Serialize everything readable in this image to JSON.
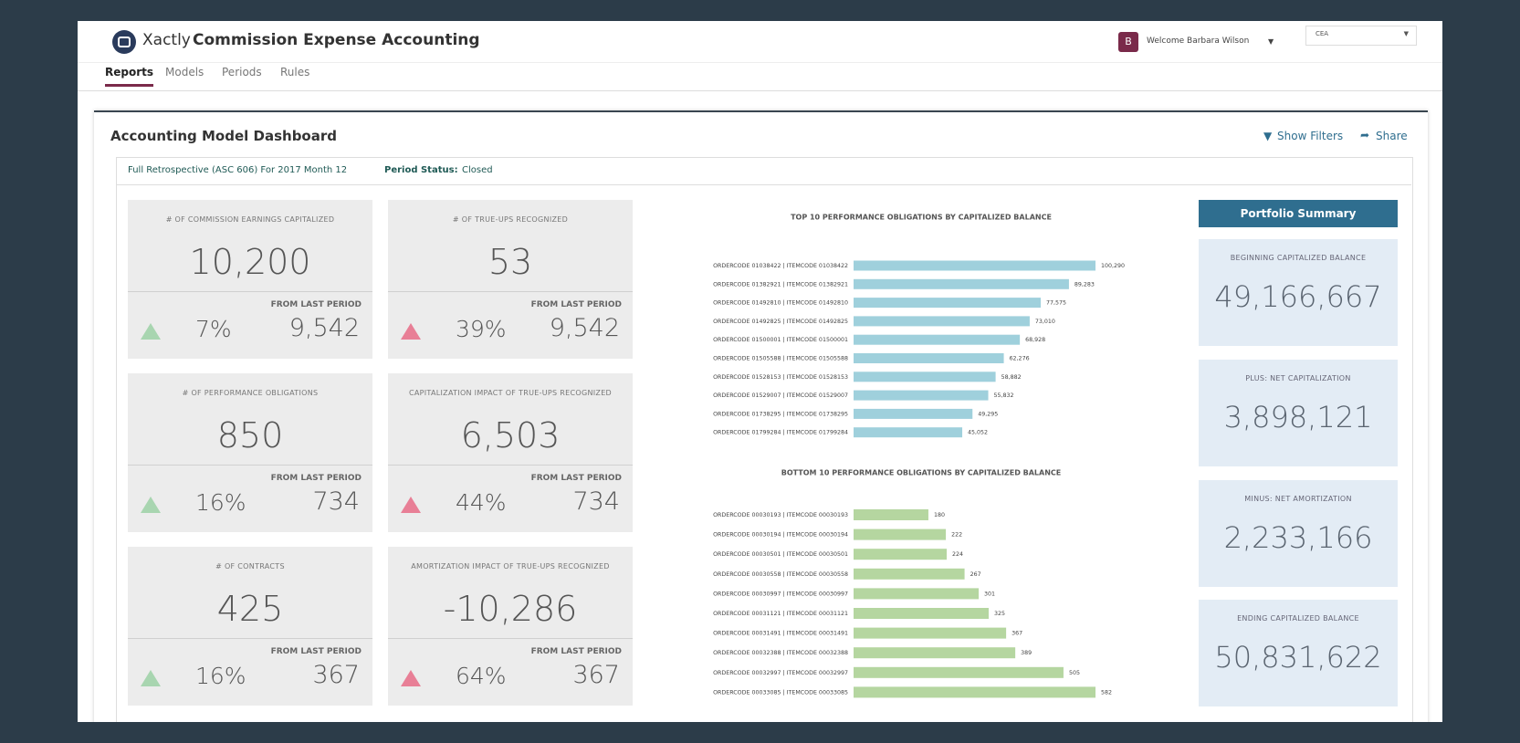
{
  "header": {
    "brand": "Xactly",
    "product": "Commission Expense Accounting",
    "avatar": "B",
    "welcome": "Welcome Barbara Wilson",
    "selector": "CEA"
  },
  "nav": {
    "tabs": [
      "Reports",
      "Models",
      "Periods",
      "Rules"
    ]
  },
  "dashboard": {
    "title": "Accounting Model Dashboard",
    "actions": [
      "Show Filters",
      "Share"
    ],
    "filter": "Full Retrospective (ASC 606) For 2017 Month 12",
    "status_label": "Period Status:",
    "status": "Closed"
  },
  "kpis": [
    {
      "title": "# OF COMMISSION EARNINGS CAPITALIZED",
      "value": "10,200",
      "change": "7%",
      "compare_label": "FROM LAST PERIOD",
      "previous": "9,542"
    },
    {
      "title": "# OF TRUE-UPS RECOGNIZED",
      "value": "53",
      "change": "39%",
      "compare_label": "FROM LAST PERIOD",
      "previous": "9,542"
    },
    {
      "title": "# OF PERFORMANCE OBLIGATIONS",
      "value": "850",
      "change": "16%",
      "compare_label": "FROM LAST PERIOD",
      "previous": "734"
    },
    {
      "title": "CAPITALIZATION IMPACT OF TRUE-UPS RECOGNIZED",
      "value": "6,503",
      "change": "44%",
      "compare_label": "FROM LAST PERIOD",
      "previous": "734"
    },
    {
      "title": "# OF CONTRACTS",
      "value": "425",
      "change": "16%",
      "compare_label": "FROM LAST PERIOD",
      "previous": "367"
    },
    {
      "title": "AMORTIZATION IMPACT OF TRUE-UPS RECOGNIZED",
      "value": "-10,286",
      "change": "64%",
      "compare_label": "FROM LAST PERIOD",
      "previous": "367"
    }
  ],
  "portfolio": {
    "title": "Portfolio Summary",
    "items": [
      {
        "label": "BEGINNING CAPITALIZED BALANCE",
        "value": "49,166,667"
      },
      {
        "label": "PLUS: NET CAPITALIZATION",
        "value": "3,898,121"
      },
      {
        "label": "MINUS: NET AMORTIZATION",
        "value": "2,233,166"
      },
      {
        "label": "ENDING CAPITALIZED BALANCE",
        "value": "50,831,622"
      }
    ]
  },
  "chart_data": [
    {
      "type": "bar",
      "orientation": "horizontal",
      "title": "TOP 10 PERFORMANCE OBLIGATIONS BY CAPITALIZED BALANCE",
      "color": "#9fd0dc",
      "categories": [
        "ORDERCODE 01038422 | ITEMCODE 01038422",
        "ORDERCODE 01382921 | ITEMCODE 01382921",
        "ORDERCODE 01492810 | ITEMCODE 01492810",
        "ORDERCODE 01492825 | ITEMCODE 01492825",
        "ORDERCODE 01500001 | ITEMCODE 01500001",
        "ORDERCODE 01505588 | ITEMCODE 01505588",
        "ORDERCODE 01528153 | ITEMCODE 01528153",
        "ORDERCODE 01529007 | ITEMCODE 01529007",
        "ORDERCODE 01738295 | ITEMCODE 01738295",
        "ORDERCODE 01799284 | ITEMCODE 01799284"
      ],
      "values": [
        100290,
        89283,
        77575,
        73010,
        68928,
        62276,
        58882,
        55832,
        49295,
        45052
      ],
      "value_labels": [
        "100,290",
        "89,283",
        "77,575",
        "73,010",
        "68,928",
        "62,276",
        "58,882",
        "55,832",
        "49,295",
        "45,052"
      ]
    },
    {
      "type": "bar",
      "orientation": "horizontal",
      "title": "BOTTOM 10 PERFORMANCE OBLIGATIONS BY CAPITALIZED BALANCE",
      "color": "#b5d6a0",
      "categories": [
        "ORDERCODE 00030193 | ITEMCODE 00030193",
        "ORDERCODE 00030194 | ITEMCODE 00030194",
        "ORDERCODE 00030501 | ITEMCODE 00030501",
        "ORDERCODE 00030558 | ITEMCODE 00030558",
        "ORDERCODE 00030997 | ITEMCODE 00030997",
        "ORDERCODE 00031121 | ITEMCODE 00031121",
        "ORDERCODE 00031491 | ITEMCODE 00031491",
        "ORDERCODE 00032388 | ITEMCODE 00032388",
        "ORDERCODE 00032997 | ITEMCODE 00032997",
        "ORDERCODE 00033085 | ITEMCODE 00033085"
      ],
      "values": [
        180,
        222,
        224,
        267,
        301,
        325,
        367,
        389,
        505,
        582
      ]
    }
  ]
}
